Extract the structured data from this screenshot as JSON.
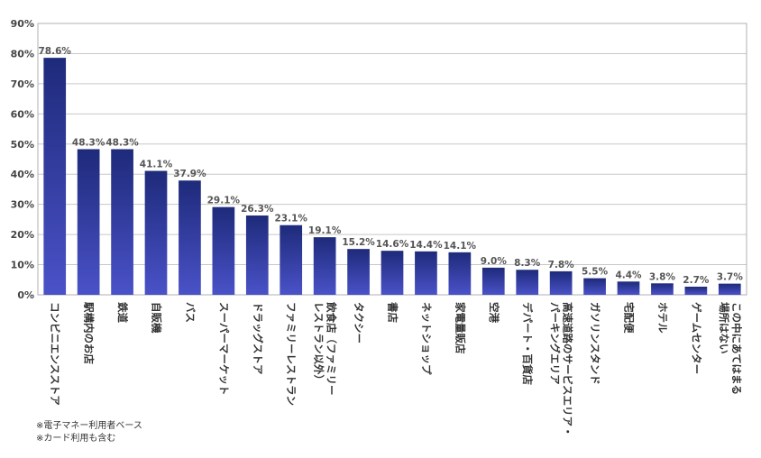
{
  "chart_data": {
    "type": "bar",
    "categories": [
      [
        "コンビニエンスストア"
      ],
      [
        "駅構内のお店"
      ],
      [
        "鉄道"
      ],
      [
        "自販機"
      ],
      [
        "バス"
      ],
      [
        "スーパーマーケット"
      ],
      [
        "ドラッグストア"
      ],
      [
        "ファミリーレストラン"
      ],
      [
        "飲食店（ファミリー",
        "レストラン以外）"
      ],
      [
        "タクシー"
      ],
      [
        "書店"
      ],
      [
        "ネットショップ"
      ],
      [
        "家電量販店"
      ],
      [
        "空港"
      ],
      [
        "デパート・百貨店"
      ],
      [
        "高速道路のサービスエリア・",
        "パーキングエリア"
      ],
      [
        "ガソリンスタンド"
      ],
      [
        "宅配便"
      ],
      [
        "ホテル"
      ],
      [
        "ゲームセンター"
      ],
      [
        "この中にあてはまる",
        "場所はない"
      ]
    ],
    "values": [
      78.6,
      48.3,
      48.3,
      41.1,
      37.9,
      29.1,
      26.3,
      23.1,
      19.1,
      15.2,
      14.6,
      14.4,
      14.1,
      9.0,
      8.3,
      7.8,
      5.5,
      4.4,
      3.8,
      2.7,
      3.7
    ],
    "value_labels": [
      "78.6%",
      "48.3%",
      "48.3%",
      "41.1%",
      "37.9%",
      "29.1%",
      "26.3%",
      "23.1%",
      "19.1%",
      "15.2%",
      "14.6%",
      "14.4%",
      "14.1%",
      "9.0%",
      "8.3%",
      "7.8%",
      "5.5%",
      "4.4%",
      "3.8%",
      "2.7%",
      "3.7%"
    ],
    "ylim": [
      0,
      90
    ],
    "yticks": [
      0,
      10,
      20,
      30,
      40,
      50,
      60,
      70,
      80,
      90
    ],
    "ytick_labels": [
      "0%",
      "10%",
      "20%",
      "30%",
      "40%",
      "50%",
      "60%",
      "70%",
      "80%",
      "90%"
    ],
    "grid": true,
    "bar_color_top": "#1e2a7a",
    "bar_color_bottom": "#4a52c8"
  },
  "notes": [
    "※電子マネー利用者ベース",
    "※カード利用も含む"
  ]
}
